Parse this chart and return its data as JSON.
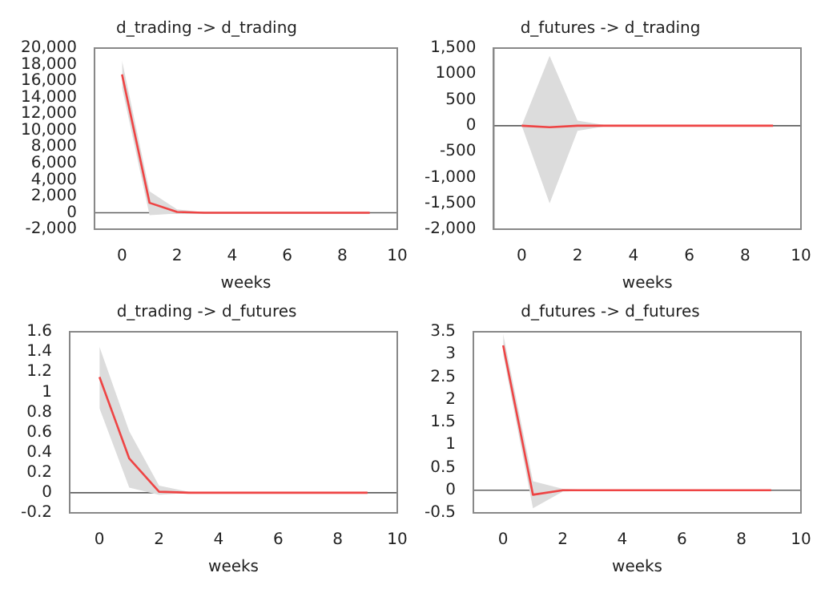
{
  "chart_data": [
    {
      "type": "line",
      "title": "d_trading -> d_trading",
      "xlabel": "weeks",
      "x": [
        0,
        1,
        2,
        3,
        4,
        5,
        6,
        7,
        8,
        9
      ],
      "xlim": [
        -1,
        10
      ],
      "xticks": [
        0,
        2,
        4,
        6,
        8,
        10
      ],
      "ylim": [
        -2000,
        20000
      ],
      "yticks": [
        {
          "value": -2000,
          "label": "-2,000"
        },
        0,
        {
          "value": 2000,
          "label": "2,000"
        },
        {
          "value": 4000,
          "label": "4,000"
        },
        {
          "value": 6000,
          "label": "6,000"
        },
        {
          "value": 8000,
          "label": "8,000"
        },
        {
          "value": 10000,
          "label": "10,000"
        },
        {
          "value": 12000,
          "label": "12,000"
        },
        {
          "value": 14000,
          "label": "14,000"
        },
        {
          "value": 16000,
          "label": "16,000"
        },
        {
          "value": 18000,
          "label": "18,000"
        },
        {
          "value": 20000,
          "label": "20,000"
        }
      ],
      "grid": false,
      "legend": false,
      "marker": "none",
      "ref_lines": [
        {
          "axis": "y",
          "value": 0,
          "color": "#606060"
        }
      ],
      "series": [
        {
          "color": "#ee4444",
          "values": [
            16800,
            1200,
            100,
            0,
            0,
            0,
            0,
            0,
            0,
            0
          ],
          "lower": [
            15200,
            -300,
            -100,
            0,
            0,
            0,
            0,
            0,
            0,
            0
          ],
          "upper": [
            18500,
            2600,
            400,
            50,
            0,
            0,
            0,
            0,
            0,
            0
          ]
        }
      ]
    },
    {
      "type": "line",
      "title": "d_futures -> d_trading",
      "xlabel": "weeks",
      "x": [
        0,
        1,
        2,
        3,
        4,
        5,
        6,
        7,
        8,
        9
      ],
      "xlim": [
        -1,
        10
      ],
      "xticks": [
        0,
        2,
        4,
        6,
        8,
        10
      ],
      "ylim": [
        -2000,
        1500
      ],
      "yticks": [
        {
          "value": -2000,
          "label": "-2,000"
        },
        {
          "value": -1500,
          "label": "-1,500"
        },
        {
          "value": -1000,
          "label": "-1,000"
        },
        -500,
        0,
        500,
        1000,
        {
          "value": 1500,
          "label": "1,500"
        }
      ],
      "grid": false,
      "legend": false,
      "marker": "none",
      "ref_lines": [
        {
          "axis": "y",
          "value": 0,
          "color": "#606060"
        }
      ],
      "series": [
        {
          "color": "#ee4444",
          "values": [
            0,
            -30,
            0,
            0,
            0,
            0,
            0,
            0,
            0,
            0
          ],
          "lower": [
            0,
            -1500,
            -100,
            -10,
            0,
            0,
            0,
            0,
            0,
            0
          ],
          "upper": [
            0,
            1350,
            100,
            10,
            0,
            0,
            0,
            0,
            0,
            0
          ]
        }
      ]
    },
    {
      "type": "line",
      "title": "d_trading -> d_futures",
      "xlabel": "weeks",
      "x": [
        0,
        1,
        2,
        3,
        4,
        5,
        6,
        7,
        8,
        9
      ],
      "xlim": [
        -1,
        10
      ],
      "xticks": [
        0,
        2,
        4,
        6,
        8,
        10
      ],
      "ylim": [
        -0.2,
        1.6
      ],
      "yticks": [
        -0.2,
        0,
        0.2,
        0.4,
        0.6,
        0.8,
        1,
        1.2,
        1.4,
        1.6
      ],
      "grid": false,
      "legend": false,
      "marker": "none",
      "ref_lines": [
        {
          "axis": "y",
          "value": 0,
          "color": "#606060"
        }
      ],
      "series": [
        {
          "color": "#ee4444",
          "values": [
            1.15,
            0.34,
            0.01,
            0,
            0,
            0,
            0,
            0,
            0,
            0
          ],
          "lower": [
            0.84,
            0.05,
            -0.02,
            0,
            0,
            0,
            0,
            0,
            0,
            0
          ],
          "upper": [
            1.45,
            0.61,
            0.07,
            0.01,
            0,
            0,
            0,
            0,
            0,
            0
          ]
        }
      ]
    },
    {
      "type": "line",
      "title": "d_futures -> d_futures",
      "xlabel": "weeks",
      "x": [
        0,
        1,
        2,
        3,
        4,
        5,
        6,
        7,
        8,
        9
      ],
      "xlim": [
        -1,
        10
      ],
      "xticks": [
        0,
        2,
        4,
        6,
        8,
        10
      ],
      "ylim": [
        -0.5,
        3.5
      ],
      "yticks": [
        -0.5,
        0,
        0.5,
        1,
        1.5,
        2,
        2.5,
        3,
        3.5
      ],
      "grid": false,
      "legend": false,
      "marker": "none",
      "ref_lines": [
        {
          "axis": "y",
          "value": 0,
          "color": "#606060"
        }
      ],
      "series": [
        {
          "color": "#ee4444",
          "values": [
            3.2,
            -0.1,
            0,
            0,
            0,
            0,
            0,
            0,
            0,
            0
          ],
          "lower": [
            3.0,
            -0.4,
            -0.03,
            0,
            0,
            0,
            0,
            0,
            0,
            0
          ],
          "upper": [
            3.45,
            0.2,
            0.03,
            0,
            0,
            0,
            0,
            0,
            0,
            0
          ]
        }
      ]
    }
  ]
}
